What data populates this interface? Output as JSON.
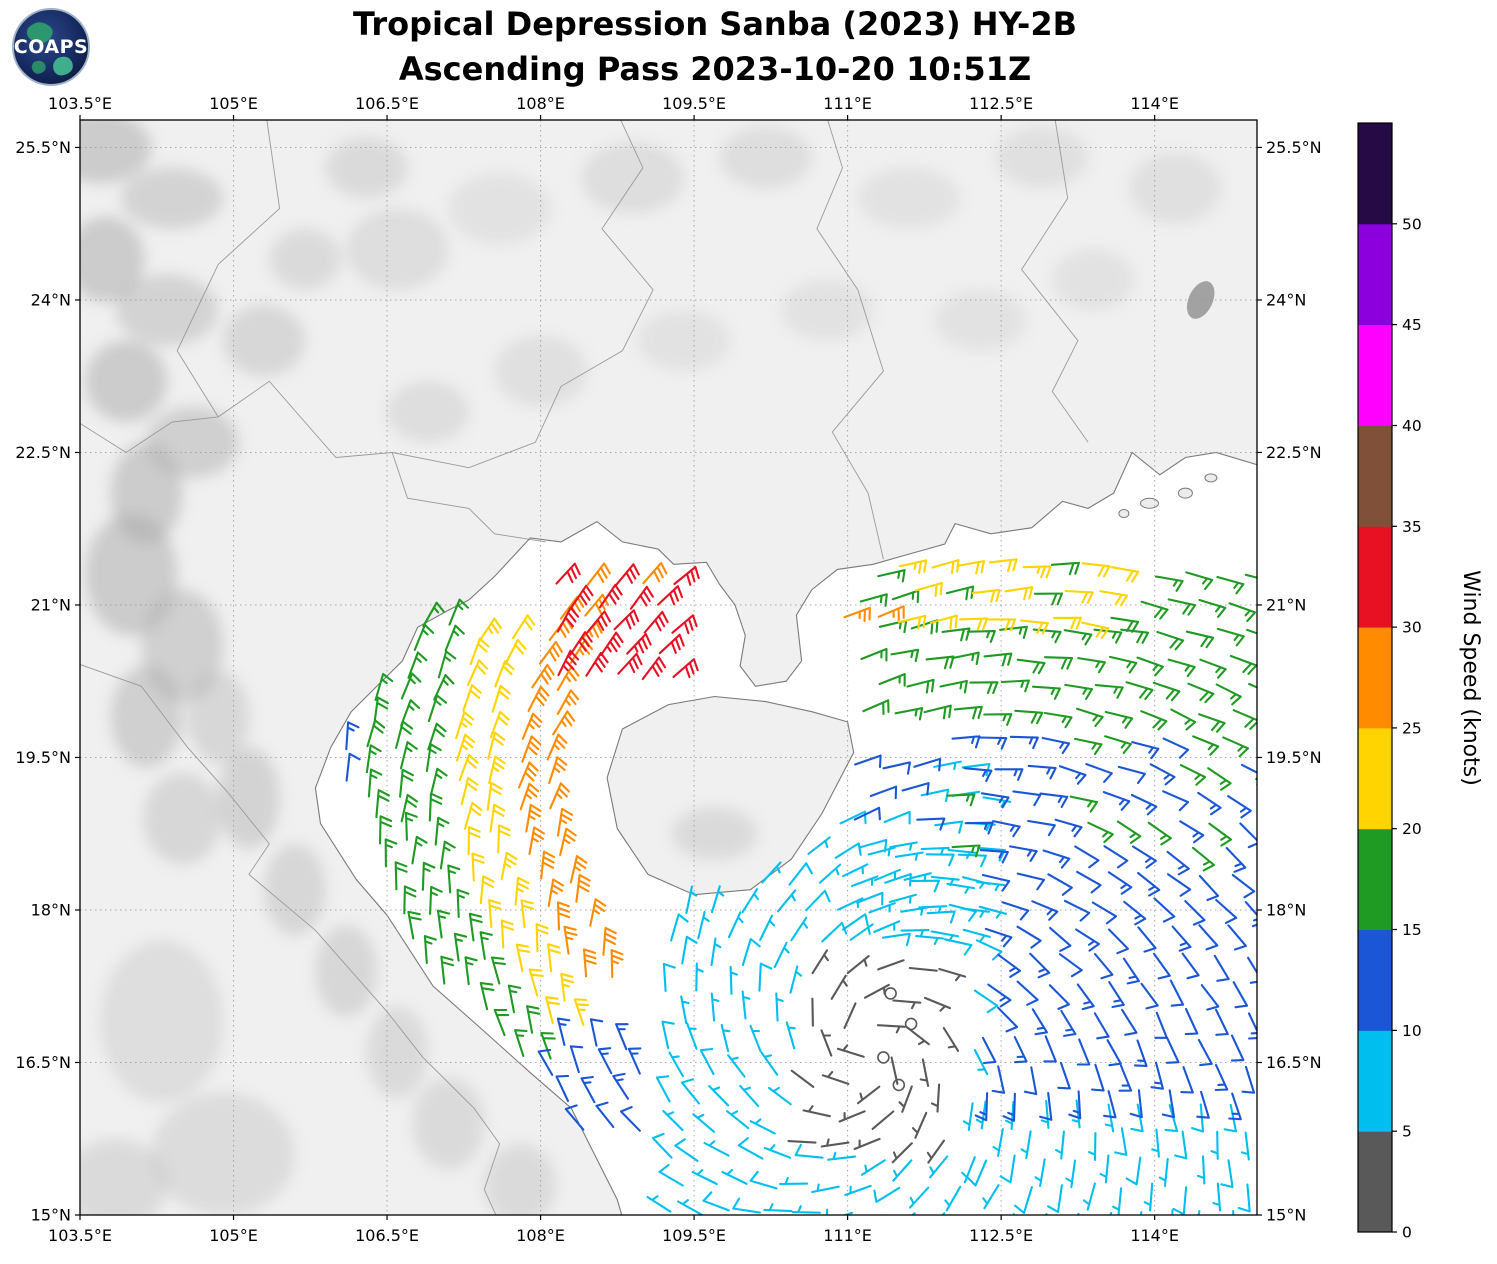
{
  "header": {
    "logo_text": "COAPS",
    "title_line1": "Tropical Depression Sanba (2023) HY-2B",
    "title_line2": "Ascending Pass 2023-10-20 10:51Z"
  },
  "axes": {
    "lon_tick_labels": [
      "103.5°E",
      "105°E",
      "106.5°E",
      "108°E",
      "109.5°E",
      "111°E",
      "112.5°E",
      "114°E"
    ],
    "lon_tick_values": [
      103.5,
      105,
      106.5,
      108,
      109.5,
      111,
      112.5,
      114
    ],
    "lat_tick_labels": [
      "25.5°N",
      "24°N",
      "22.5°N",
      "21°N",
      "19.5°N",
      "18°N",
      "16.5°N",
      "15°N"
    ],
    "lat_tick_values": [
      25.5,
      24,
      22.5,
      21,
      19.5,
      18,
      16.5,
      15
    ],
    "lon_range": [
      103.5,
      115.0
    ],
    "lat_range": [
      15.0,
      25.77
    ],
    "grid_style": "dotted"
  },
  "colorbar": {
    "label": "Wind Speed (knots)",
    "tick_labels": [
      "0",
      "5",
      "10",
      "15",
      "20",
      "25",
      "30",
      "35",
      "40",
      "45",
      "50"
    ],
    "tick_values": [
      0,
      5,
      10,
      15,
      20,
      25,
      30,
      35,
      40,
      45,
      50
    ],
    "scale_max": 55,
    "colors": [
      "#595959",
      "#00bfef",
      "#1a56d6",
      "#1f9a22",
      "#ffd400",
      "#ff8c00",
      "#e81123",
      "#815038",
      "#ff00ff",
      "#8b00dd",
      "#250a45"
    ]
  },
  "chart_data": {
    "type": "scatter",
    "subtype": "wind-barb-field",
    "title": "Tropical Depression Sanba (2023) HY-2B — Ascending Pass 2023-10-20 10:51Z",
    "units": "knots",
    "flow_center": {
      "lon": 111.2,
      "lat": 16.6
    },
    "calm_circles": [
      [
        111.42,
        17.18
      ],
      [
        111.62,
        16.88
      ],
      [
        111.35,
        16.55
      ],
      [
        111.5,
        16.28
      ]
    ],
    "clusters": [
      {
        "name": "west-edge-blue",
        "type": "parab",
        "lonV": 106.08,
        "latV": 19.9,
        "k": 0.12,
        "lat0": 19.25,
        "lat1": 20.6,
        "dlat": 0.34,
        "cols": 1,
        "dcol": 0.3,
        "speed": 12,
        "jit": 1.5
      },
      {
        "name": "gulf-green-band",
        "type": "parab",
        "lonV": 106.33,
        "latV": 19.5,
        "k": 0.14,
        "lat0": 16.55,
        "lat1": 21.05,
        "dlat": 0.235,
        "cols": 3,
        "dcol": 0.28,
        "speed": 17,
        "jit": 1.9
      },
      {
        "name": "gulf-yellow-band",
        "type": "parab",
        "lonV": 107.18,
        "latV": 19.4,
        "k": 0.15,
        "lat0": 16.9,
        "lat1": 20.75,
        "dlat": 0.235,
        "cols": 2,
        "dcol": 0.29,
        "speed": 22,
        "jit": 1.9
      },
      {
        "name": "gulf-orange-band",
        "type": "parab",
        "lonV": 107.8,
        "latV": 19.35,
        "k": 0.16,
        "lat0": 17.35,
        "lat1": 21.0,
        "dlat": 0.235,
        "cols": 2,
        "dcol": 0.29,
        "speed": 27,
        "jit": 1.9
      },
      {
        "name": "gulf-red-core",
        "type": "grid",
        "lon0": 108.15,
        "lon1": 109.45,
        "lat0": 20.3,
        "lat1": 21.42,
        "dlon": 0.29,
        "dlat": 0.225,
        "speed": 31,
        "jit": 1.7
      },
      {
        "name": "viet-coast-blue",
        "type": "grid",
        "lon0": 108.1,
        "lon1": 109.05,
        "lat0": 15.85,
        "lat1": 16.7,
        "dlon": 0.3,
        "dlat": 0.27,
        "speed": 12,
        "jit": 1.7
      },
      {
        "name": "south-cyan",
        "type": "grid",
        "lon0": 109.25,
        "lon1": 112.3,
        "lat0": 15.02,
        "lat1": 18.55,
        "dlon": 0.3,
        "dlat": 0.27,
        "speed": 7,
        "jit": 1.9,
        "hole": [
          110.55,
          112.15,
          15.62,
          17.68
        ]
      },
      {
        "name": "storm-center-calm",
        "type": "grid",
        "lon0": 110.68,
        "lon1": 112.05,
        "lat0": 15.72,
        "lat1": 17.6,
        "dlon": 0.31,
        "dlat": 0.28,
        "speed": 3,
        "jit": 1.4
      },
      {
        "name": "east-hainan-cyan",
        "type": "grid",
        "lon0": 110.95,
        "lon1": 112.35,
        "lat0": 17.78,
        "lat1": 19.55,
        "dlon": 0.3,
        "dlat": 0.27,
        "speed": 7,
        "jit": 1.9,
        "hole": [
          111.0,
          111.72,
          18.8,
          19.62
        ]
      },
      {
        "name": "east-hainan-blue",
        "type": "grid",
        "lon0": 111.08,
        "lon1": 111.66,
        "lat0": 18.88,
        "lat1": 19.58,
        "dlon": 0.29,
        "dlat": 0.27,
        "speed": 11,
        "jit": 1.5
      },
      {
        "name": "southeast-cyan",
        "type": "grid",
        "lon0": 112.35,
        "lon1": 115.0,
        "lat0": 15.02,
        "lat1": 16.15,
        "dlon": 0.3,
        "dlat": 0.27,
        "speed": 7,
        "jit": 1.9
      },
      {
        "name": "east-blue",
        "type": "grid",
        "lon0": 112.35,
        "lon1": 115.0,
        "lat0": 16.2,
        "lat1": 18.55,
        "dlon": 0.3,
        "dlat": 0.27,
        "speed": 12,
        "jit": 1.9
      },
      {
        "name": "east-blue-green-mix",
        "type": "grid",
        "lon0": 112.0,
        "lon1": 115.0,
        "lat0": 18.6,
        "lat1": 19.9,
        "dlon": 0.3,
        "dlat": 0.27,
        "speed": 14,
        "jit": 2.5
      },
      {
        "name": "northeast-green",
        "type": "grid",
        "lon0": 111.15,
        "lon1": 115.0,
        "lat0": 19.95,
        "lat1": 21.55,
        "dlon": 0.3,
        "dlat": 0.27,
        "speed": 17,
        "jit": 1.9,
        "hole": [
          111.45,
          113.75,
          20.8,
          21.58
        ]
      },
      {
        "name": "northeast-yellow",
        "type": "grid",
        "lon0": 111.5,
        "lon1": 113.7,
        "lat0": 20.85,
        "lat1": 21.55,
        "dlon": 0.3,
        "dlat": 0.27,
        "speed": 21,
        "jit": 2.1
      },
      {
        "name": "coast-orange-pair",
        "type": "grid",
        "lon0": 110.98,
        "lon1": 111.42,
        "lat0": 20.88,
        "lat1": 21.12,
        "dlon": 0.34,
        "dlat": 0.26,
        "speed": 26,
        "jit": 1.4
      }
    ]
  }
}
